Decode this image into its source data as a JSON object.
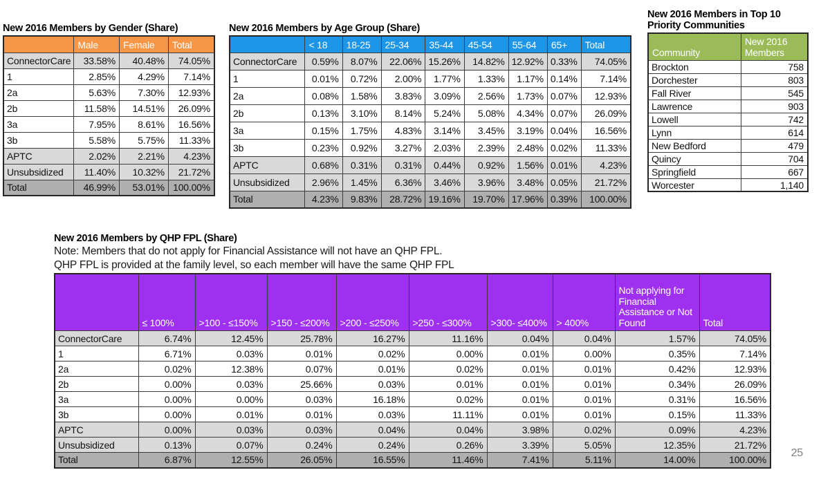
{
  "page_number": "25",
  "colors": {
    "orange": "#F79646",
    "blue": "#1E96E8",
    "green": "#9BBB59",
    "purple": "#A030F0",
    "row_gray": "#D9D9D9",
    "total_gray": "#AFAFAF"
  },
  "gender_table": {
    "title": "New 2016 Members by Gender (Share)",
    "columns": [
      "",
      "Male",
      "Female",
      "Total"
    ],
    "rows": [
      {
        "label": "ConnectorCare",
        "shade": "gray",
        "values": [
          "33.58%",
          "40.48%",
          "74.05%"
        ]
      },
      {
        "label": "1",
        "shade": "white",
        "values": [
          "2.85%",
          "4.29%",
          "7.14%"
        ]
      },
      {
        "label": "2a",
        "shade": "white",
        "values": [
          "5.63%",
          "7.30%",
          "12.93%"
        ]
      },
      {
        "label": "2b",
        "shade": "white",
        "values": [
          "11.58%",
          "14.51%",
          "26.09%"
        ]
      },
      {
        "label": "3a",
        "shade": "white",
        "values": [
          "7.95%",
          "8.61%",
          "16.56%"
        ]
      },
      {
        "label": "3b",
        "shade": "white",
        "values": [
          "5.58%",
          "5.75%",
          "11.33%"
        ]
      },
      {
        "label": "APTC",
        "shade": "gray",
        "values": [
          "2.02%",
          "2.21%",
          "4.23%"
        ]
      },
      {
        "label": "Unsubsidized",
        "shade": "gray",
        "values": [
          "11.40%",
          "10.32%",
          "21.72%"
        ]
      },
      {
        "label": "Total",
        "shade": "total",
        "values": [
          "46.99%",
          "53.01%",
          "100.00%"
        ]
      }
    ]
  },
  "age_table": {
    "title": "New 2016 Members by Age Group (Share)",
    "columns": [
      "",
      "< 18",
      "18-25",
      "25-34",
      "35-44",
      "45-54",
      "55-64",
      "65+",
      "Total"
    ],
    "rows": [
      {
        "label": "ConnectorCare",
        "shade": "gray",
        "values": [
          "0.59%",
          "8.07%",
          "22.06%",
          "15.26%",
          "14.82%",
          "12.92%",
          "0.33%",
          "74.05%"
        ]
      },
      {
        "label": "1",
        "shade": "white",
        "values": [
          "0.01%",
          "0.72%",
          "2.00%",
          "1.77%",
          "1.33%",
          "1.17%",
          "0.14%",
          "7.14%"
        ]
      },
      {
        "label": "2a",
        "shade": "white",
        "values": [
          "0.08%",
          "1.58%",
          "3.83%",
          "3.09%",
          "2.56%",
          "1.73%",
          "0.07%",
          "12.93%"
        ]
      },
      {
        "label": "2b",
        "shade": "white",
        "values": [
          "0.13%",
          "3.10%",
          "8.14%",
          "5.24%",
          "5.08%",
          "4.34%",
          "0.07%",
          "26.09%"
        ]
      },
      {
        "label": "3a",
        "shade": "white",
        "values": [
          "0.15%",
          "1.75%",
          "4.83%",
          "3.14%",
          "3.45%",
          "3.19%",
          "0.04%",
          "16.56%"
        ]
      },
      {
        "label": "3b",
        "shade": "white",
        "values": [
          "0.23%",
          "0.92%",
          "3.27%",
          "2.03%",
          "2.39%",
          "2.48%",
          "0.02%",
          "11.33%"
        ]
      },
      {
        "label": "APTC",
        "shade": "gray",
        "values": [
          "0.68%",
          "0.31%",
          "0.31%",
          "0.44%",
          "0.92%",
          "1.56%",
          "0.01%",
          "4.23%"
        ]
      },
      {
        "label": "Unsubsidized",
        "shade": "gray",
        "values": [
          "2.96%",
          "1.45%",
          "6.36%",
          "3.46%",
          "3.96%",
          "3.48%",
          "0.05%",
          "21.72%"
        ]
      },
      {
        "label": "Total",
        "shade": "total",
        "values": [
          "4.23%",
          "9.83%",
          "28.72%",
          "19.16%",
          "19.70%",
          "17.96%",
          "0.39%",
          "100.00%"
        ]
      }
    ]
  },
  "communities_table": {
    "title": "New 2016 Members in Top 10 Priority Communities",
    "columns": [
      "Community",
      "New 2016 Members"
    ],
    "rows": [
      {
        "label": "Brockton",
        "shade": "white",
        "values": [
          "758"
        ]
      },
      {
        "label": "Dorchester",
        "shade": "white",
        "values": [
          "803"
        ]
      },
      {
        "label": "Fall River",
        "shade": "white",
        "values": [
          "545"
        ]
      },
      {
        "label": "Lawrence",
        "shade": "white",
        "values": [
          "903"
        ]
      },
      {
        "label": "Lowell",
        "shade": "white",
        "values": [
          "742"
        ]
      },
      {
        "label": "Lynn",
        "shade": "white",
        "values": [
          "614"
        ]
      },
      {
        "label": "New Bedford",
        "shade": "white",
        "values": [
          "479"
        ]
      },
      {
        "label": "Quincy",
        "shade": "white",
        "values": [
          "704"
        ]
      },
      {
        "label": "Springfield",
        "shade": "white",
        "values": [
          "667"
        ]
      },
      {
        "label": "Worcester",
        "shade": "white",
        "values": [
          "1,140"
        ]
      }
    ]
  },
  "fpl_table": {
    "title": "New 2016 Members by QHP FPL (Share)",
    "note_line1": "Note: Members that do not apply for Financial Assistance will not have an QHP FPL.",
    "note_line2": "QHP FPL is provided at the family level, so each member will have the same QHP FPL",
    "columns": [
      "",
      "≤ 100%",
      ">100 - ≤150%",
      ">150 - ≤200%",
      ">200 - ≤250%",
      ">250 - ≤300%",
      ">300- ≤400%",
      "> 400%",
      "Not applying for Financial Assistance or Not Found",
      "Total"
    ],
    "rows": [
      {
        "label": "ConnectorCare",
        "shade": "gray",
        "values": [
          "6.74%",
          "12.45%",
          "25.78%",
          "16.27%",
          "11.16%",
          "0.04%",
          "0.04%",
          "1.57%",
          "74.05%"
        ]
      },
      {
        "label": "1",
        "shade": "white",
        "values": [
          "6.71%",
          "0.03%",
          "0.01%",
          "0.02%",
          "0.00%",
          "0.01%",
          "0.00%",
          "0.35%",
          "7.14%"
        ]
      },
      {
        "label": "2a",
        "shade": "white",
        "values": [
          "0.02%",
          "12.38%",
          "0.07%",
          "0.01%",
          "0.02%",
          "0.01%",
          "0.01%",
          "0.42%",
          "12.93%"
        ]
      },
      {
        "label": "2b",
        "shade": "white",
        "values": [
          "0.00%",
          "0.03%",
          "25.66%",
          "0.03%",
          "0.01%",
          "0.01%",
          "0.01%",
          "0.34%",
          "26.09%"
        ]
      },
      {
        "label": "3a",
        "shade": "white",
        "values": [
          "0.00%",
          "0.00%",
          "0.03%",
          "16.18%",
          "0.02%",
          "0.01%",
          "0.01%",
          "0.31%",
          "16.56%"
        ]
      },
      {
        "label": "3b",
        "shade": "white",
        "values": [
          "0.00%",
          "0.01%",
          "0.01%",
          "0.03%",
          "11.11%",
          "0.01%",
          "0.01%",
          "0.15%",
          "11.33%"
        ]
      },
      {
        "label": "APTC",
        "shade": "gray",
        "values": [
          "0.00%",
          "0.03%",
          "0.03%",
          "0.04%",
          "0.04%",
          "3.98%",
          "0.02%",
          "0.09%",
          "4.23%"
        ]
      },
      {
        "label": "Unsubsidized",
        "shade": "gray",
        "values": [
          "0.13%",
          "0.07%",
          "0.24%",
          "0.24%",
          "0.26%",
          "3.39%",
          "5.05%",
          "12.35%",
          "21.72%"
        ]
      },
      {
        "label": "Total",
        "shade": "total",
        "values": [
          "6.87%",
          "12.55%",
          "26.05%",
          "16.55%",
          "11.46%",
          "7.41%",
          "5.11%",
          "14.00%",
          "100.00%"
        ]
      }
    ]
  }
}
